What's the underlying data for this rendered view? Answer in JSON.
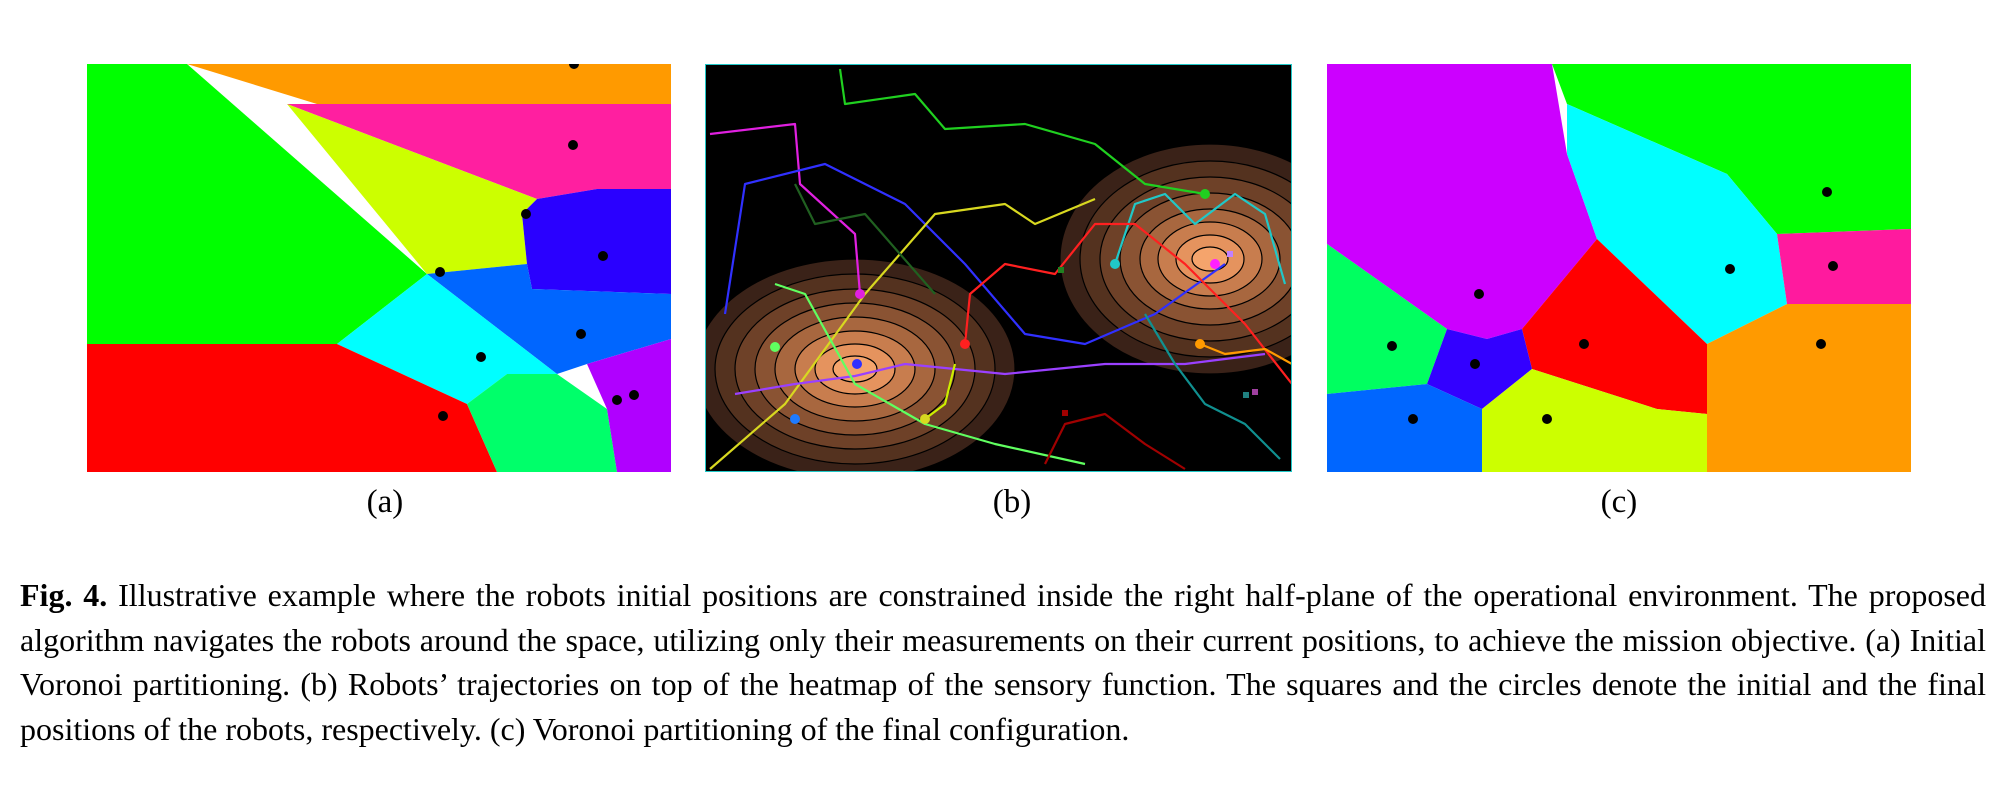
{
  "figure": {
    "subfigure_labels": {
      "a": "(a)",
      "b": "(b)",
      "c": "(c)"
    },
    "colors": {
      "background_b": "#000000",
      "heat_core": "#f5a46c",
      "robot_dot": "#000000",
      "voronoi": [
        "#00ff00",
        "#ff9a00",
        "#ff1fa0",
        "#ccff00",
        "#2a00ff",
        "#0066ff",
        "#00ffff",
        "#ff0000",
        "#00ff6a",
        "#b000ff"
      ]
    },
    "caption": {
      "prefix": "Fig. 4.",
      "text": " Illustrative example where the robots initial positions are constrained inside the right half-plane of the operational environment. The proposed algorithm navigates the robots around the space, utilizing only their measurements on their current positions, to achieve the mission objective. (a) Initial Voronoi partitioning. (b) Robots’ trajectories on top of the heatmap of the sensory function. The squares and the circles denote the initial and the final positions of the robots, respectively. (c) Voronoi partitioning of the final configuration."
    }
  }
}
